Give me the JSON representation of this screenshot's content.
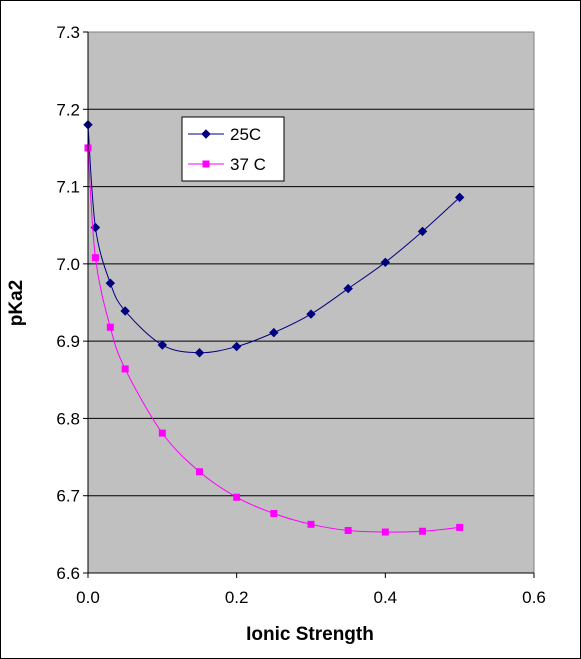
{
  "chart_data": {
    "type": "scatter",
    "xlabel": "Ionic Strength",
    "ylabel": "pKa2",
    "xlim": [
      0.0,
      0.6
    ],
    "ylim": [
      6.6,
      7.3
    ],
    "x_ticks": [
      "0.0",
      "0.2",
      "0.4",
      "0.6"
    ],
    "y_ticks": [
      "6.6",
      "6.7",
      "6.8",
      "6.9",
      "7.0",
      "7.1",
      "7.2",
      "7.3"
    ],
    "grid": "horizontal",
    "legend_position": "top-left-inside",
    "plot_background": "#c0c0c0",
    "series": [
      {
        "name": "25C",
        "color": "#000080",
        "marker": "diamond",
        "x": [
          0.0,
          0.01,
          0.03,
          0.05,
          0.1,
          0.15,
          0.2,
          0.25,
          0.3,
          0.35,
          0.4,
          0.45,
          0.5
        ],
        "y": [
          7.18,
          7.047,
          6.975,
          6.939,
          6.895,
          6.885,
          6.893,
          6.911,
          6.935,
          6.968,
          7.002,
          7.042,
          7.086
        ]
      },
      {
        "name": "37 C",
        "color": "#ff00ff",
        "marker": "square",
        "x": [
          0.0,
          0.01,
          0.03,
          0.05,
          0.1,
          0.15,
          0.2,
          0.25,
          0.3,
          0.35,
          0.4,
          0.45,
          0.5
        ],
        "y": [
          7.15,
          7.008,
          6.918,
          6.864,
          6.781,
          6.731,
          6.698,
          6.677,
          6.663,
          6.655,
          6.653,
          6.654,
          6.659
        ]
      }
    ]
  }
}
